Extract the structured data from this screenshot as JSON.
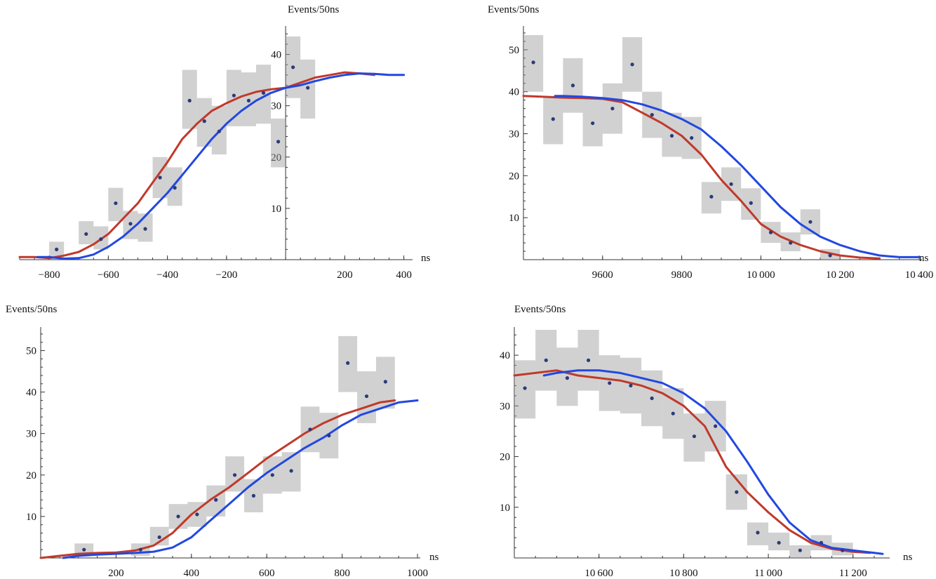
{
  "figure": {
    "description_none": ""
  },
  "chart_data": [
    {
      "type": "scatter",
      "title": "",
      "ylabel": "Events/50ns",
      "xlabel": "ns",
      "xlim": [
        -900,
        420
      ],
      "ylim": [
        0,
        45
      ],
      "yaxis_at_x": 0,
      "xticks": [
        -800,
        -600,
        -400,
        -200,
        200,
        400
      ],
      "xtick_labels": [
        "−800",
        "−600",
        "−400",
        "−200",
        "200",
        "400"
      ],
      "yticks": [
        10,
        20,
        30,
        40
      ],
      "points": [
        {
          "x": -775,
          "y": 2,
          "lo": 0,
          "hi": 3.5
        },
        {
          "x": -675,
          "y": 5,
          "lo": 3,
          "hi": 7.5
        },
        {
          "x": -625,
          "y": 4,
          "lo": 2,
          "hi": 6.5
        },
        {
          "x": -575,
          "y": 11,
          "lo": 7.5,
          "hi": 14
        },
        {
          "x": -525,
          "y": 7,
          "lo": 4,
          "hi": 9.5
        },
        {
          "x": -475,
          "y": 6,
          "lo": 3.5,
          "hi": 9
        },
        {
          "x": -425,
          "y": 16,
          "lo": 12,
          "hi": 20
        },
        {
          "x": -375,
          "y": 14,
          "lo": 10.5,
          "hi": 18
        },
        {
          "x": -325,
          "y": 31,
          "lo": 25.5,
          "hi": 37
        },
        {
          "x": -275,
          "y": 27,
          "lo": 22,
          "hi": 31.5
        },
        {
          "x": -225,
          "y": 25,
          "lo": 20.5,
          "hi": 30
        },
        {
          "x": -175,
          "y": 32,
          "lo": 26,
          "hi": 37
        },
        {
          "x": -125,
          "y": 31,
          "lo": 26,
          "hi": 36.5
        },
        {
          "x": -75,
          "y": 32.5,
          "lo": 26.5,
          "hi": 38
        },
        {
          "x": -25,
          "y": 23,
          "lo": 18,
          "hi": 27.5
        },
        {
          "x": 25,
          "y": 37.5,
          "lo": 31.5,
          "hi": 43.5
        },
        {
          "x": 75,
          "y": 33.5,
          "lo": 27.5,
          "hi": 39
        }
      ],
      "series": [
        {
          "name": "red",
          "color": "#c0392b",
          "x": [
            -900,
            -850,
            -800,
            -750,
            -700,
            -650,
            -600,
            -550,
            -500,
            -450,
            -400,
            -350,
            -300,
            -250,
            -200,
            -150,
            -100,
            -50,
            0,
            50,
            100,
            150,
            200,
            250,
            300
          ],
          "y": [
            0.5,
            0.5,
            0.3,
            0.8,
            1.5,
            3,
            5,
            8,
            11,
            15,
            19,
            23.5,
            26.5,
            29,
            30.5,
            31.8,
            32.7,
            33.2,
            33.5,
            34.5,
            35.5,
            36,
            36.5,
            36.3,
            36
          ]
        },
        {
          "name": "blue",
          "color": "#2248e0",
          "x": [
            -840,
            -800,
            -750,
            -700,
            -650,
            -600,
            -550,
            -500,
            -450,
            -400,
            -350,
            -300,
            -250,
            -200,
            -150,
            -100,
            -50,
            0,
            50,
            100,
            150,
            200,
            250,
            300,
            350,
            400
          ],
          "y": [
            0.5,
            0.5,
            0.2,
            0.3,
            1,
            2.5,
            4.5,
            7,
            10,
            13,
            16.5,
            20,
            23.5,
            26.5,
            29,
            31,
            32.5,
            33.5,
            34,
            34.8,
            35.5,
            36,
            36.3,
            36.2,
            36,
            36
          ]
        }
      ]
    },
    {
      "type": "scatter",
      "title": "",
      "ylabel": "Events/50ns",
      "xlabel": "ns",
      "xlim": [
        9400,
        10400
      ],
      "ylim": [
        0,
        55
      ],
      "yaxis_at_x": 9400,
      "xticks": [
        9600,
        9800,
        10000,
        10200,
        10400
      ],
      "xtick_labels": [
        "9600",
        "9800",
        "10 000",
        "10 200",
        "10 400"
      ],
      "yticks": [
        10,
        20,
        30,
        40,
        50
      ],
      "points": [
        {
          "x": 9425,
          "y": 47,
          "lo": 40,
          "hi": 53.5
        },
        {
          "x": 9475,
          "y": 33.5,
          "lo": 27.5,
          "hi": 39
        },
        {
          "x": 9525,
          "y": 41.5,
          "lo": 35,
          "hi": 48
        },
        {
          "x": 9575,
          "y": 32.5,
          "lo": 27,
          "hi": 38.5
        },
        {
          "x": 9625,
          "y": 36,
          "lo": 30,
          "hi": 42
        },
        {
          "x": 9675,
          "y": 46.5,
          "lo": 40,
          "hi": 53
        },
        {
          "x": 9725,
          "y": 34.5,
          "lo": 29,
          "hi": 40
        },
        {
          "x": 9775,
          "y": 29.5,
          "lo": 24.5,
          "hi": 35
        },
        {
          "x": 9825,
          "y": 29,
          "lo": 24,
          "hi": 34
        },
        {
          "x": 9875,
          "y": 15,
          "lo": 11,
          "hi": 18.5
        },
        {
          "x": 9925,
          "y": 18,
          "lo": 14,
          "hi": 22
        },
        {
          "x": 9975,
          "y": 13.5,
          "lo": 9.5,
          "hi": 17
        },
        {
          "x": 10025,
          "y": 6.5,
          "lo": 4,
          "hi": 9
        },
        {
          "x": 10075,
          "y": 4,
          "lo": 2,
          "hi": 6.5
        },
        {
          "x": 10125,
          "y": 9,
          "lo": 6,
          "hi": 12
        },
        {
          "x": 10175,
          "y": 1,
          "lo": 0,
          "hi": 2.5
        }
      ],
      "series": [
        {
          "name": "red",
          "color": "#c0392b",
          "x": [
            9400,
            9450,
            9500,
            9550,
            9600,
            9650,
            9700,
            9750,
            9800,
            9850,
            9900,
            9950,
            10000,
            10050,
            10100,
            10150,
            10200,
            10250,
            10300
          ],
          "y": [
            39,
            38.8,
            38.6,
            38.5,
            38.3,
            37.5,
            35,
            32.5,
            29.5,
            25,
            19,
            14,
            8.5,
            5.5,
            3.5,
            2,
            1,
            0.5,
            0.3
          ]
        },
        {
          "name": "blue",
          "color": "#2248e0",
          "x": [
            9480,
            9500,
            9550,
            9600,
            9650,
            9700,
            9750,
            9800,
            9850,
            9900,
            9950,
            10000,
            10050,
            10100,
            10150,
            10200,
            10250,
            10300,
            10350,
            10400
          ],
          "y": [
            39,
            39,
            38.8,
            38.5,
            38,
            37,
            35.5,
            33.5,
            31,
            27,
            22.5,
            17.5,
            12.5,
            8.5,
            5.5,
            3.5,
            2,
            1,
            0.6,
            0.6
          ]
        }
      ]
    },
    {
      "type": "scatter",
      "title": "",
      "ylabel": "Events/50ns",
      "xlabel": "ns",
      "xlim": [
        0,
        1000
      ],
      "ylim": [
        0,
        55
      ],
      "yaxis_at_x": 0,
      "xticks": [
        200,
        400,
        600,
        800,
        1000
      ],
      "xtick_labels": [
        "200",
        "400",
        "600",
        "800",
        "1000"
      ],
      "yticks": [
        10,
        20,
        30,
        40,
        50
      ],
      "points": [
        {
          "x": 115,
          "y": 2,
          "lo": 0.5,
          "hi": 3.5
        },
        {
          "x": 265,
          "y": 2,
          "lo": 0.5,
          "hi": 3.5
        },
        {
          "x": 315,
          "y": 5,
          "lo": 3,
          "hi": 7.5
        },
        {
          "x": 365,
          "y": 10,
          "lo": 7,
          "hi": 13
        },
        {
          "x": 415,
          "y": 10.5,
          "lo": 7.5,
          "hi": 13.5
        },
        {
          "x": 465,
          "y": 14,
          "lo": 10,
          "hi": 17.5
        },
        {
          "x": 515,
          "y": 20,
          "lo": 16,
          "hi": 24.5
        },
        {
          "x": 565,
          "y": 15,
          "lo": 11,
          "hi": 19
        },
        {
          "x": 615,
          "y": 20,
          "lo": 15.5,
          "hi": 24.5
        },
        {
          "x": 665,
          "y": 21,
          "lo": 16,
          "hi": 25.5
        },
        {
          "x": 715,
          "y": 31,
          "lo": 25.5,
          "hi": 36.5
        },
        {
          "x": 765,
          "y": 29.5,
          "lo": 24,
          "hi": 35
        },
        {
          "x": 815,
          "y": 47,
          "lo": 40,
          "hi": 53.5
        },
        {
          "x": 865,
          "y": 39,
          "lo": 32.5,
          "hi": 45
        },
        {
          "x": 915,
          "y": 42.5,
          "lo": 36,
          "hi": 48.5
        }
      ],
      "series": [
        {
          "name": "red",
          "color": "#c0392b",
          "x": [
            0,
            50,
            100,
            150,
            200,
            250,
            300,
            350,
            400,
            450,
            500,
            550,
            600,
            650,
            700,
            750,
            800,
            850,
            900,
            940
          ],
          "y": [
            0,
            0.5,
            1,
            1.2,
            1.3,
            1.8,
            3,
            6,
            10.5,
            14,
            17,
            20.5,
            24,
            27,
            30,
            32.5,
            34.5,
            36,
            37.5,
            38
          ]
        },
        {
          "name": "blue",
          "color": "#2248e0",
          "x": [
            60,
            100,
            150,
            200,
            250,
            300,
            350,
            400,
            450,
            500,
            550,
            600,
            650,
            700,
            750,
            800,
            850,
            900,
            950,
            1000
          ],
          "y": [
            0,
            0.5,
            0.8,
            1,
            1.2,
            1.5,
            2.5,
            5,
            9,
            13,
            17,
            20.5,
            23.5,
            26.5,
            29,
            32,
            34.5,
            36,
            37.5,
            38
          ]
        }
      ]
    },
    {
      "type": "scatter",
      "title": "",
      "ylabel": "Events/50ns",
      "xlabel": "ns",
      "xlim": [
        10400,
        11280
      ],
      "ylim": [
        0,
        45
      ],
      "yaxis_at_x": 10400,
      "xticks": [
        10600,
        10800,
        11000,
        11200
      ],
      "xtick_labels": [
        "10 600",
        "10 800",
        "11 000",
        "11 200"
      ],
      "yticks": [
        10,
        20,
        30,
        40
      ],
      "points": [
        {
          "x": 10425,
          "y": 33.5,
          "lo": 27.5,
          "hi": 39
        },
        {
          "x": 10475,
          "y": 39,
          "lo": 33,
          "hi": 45
        },
        {
          "x": 10525,
          "y": 35.5,
          "lo": 30,
          "hi": 41.5
        },
        {
          "x": 10575,
          "y": 39,
          "lo": 33,
          "hi": 45
        },
        {
          "x": 10625,
          "y": 34.5,
          "lo": 29,
          "hi": 40
        },
        {
          "x": 10675,
          "y": 34,
          "lo": 28.5,
          "hi": 39.5
        },
        {
          "x": 10725,
          "y": 31.5,
          "lo": 26,
          "hi": 37
        },
        {
          "x": 10775,
          "y": 28.5,
          "lo": 23.5,
          "hi": 33.5
        },
        {
          "x": 10825,
          "y": 24,
          "lo": 19,
          "hi": 28.5
        },
        {
          "x": 10875,
          "y": 26,
          "lo": 21,
          "hi": 31
        },
        {
          "x": 10925,
          "y": 13,
          "lo": 9.5,
          "hi": 16.5
        },
        {
          "x": 10975,
          "y": 5,
          "lo": 2.5,
          "hi": 7
        },
        {
          "x": 11025,
          "y": 3,
          "lo": 1.5,
          "hi": 5
        },
        {
          "x": 11075,
          "y": 1.5,
          "lo": 0,
          "hi": 2.5
        },
        {
          "x": 11125,
          "y": 3,
          "lo": 1.5,
          "hi": 4.5
        },
        {
          "x": 11175,
          "y": 1.5,
          "lo": 0.5,
          "hi": 3
        }
      ],
      "series": [
        {
          "name": "red",
          "color": "#c0392b",
          "x": [
            10400,
            10450,
            10500,
            10550,
            10600,
            10650,
            10700,
            10750,
            10800,
            10850,
            10900,
            10950,
            11000,
            11050,
            11100,
            11150,
            11200,
            11240
          ],
          "y": [
            36,
            36.5,
            37,
            36,
            35.5,
            35,
            34,
            32.5,
            30,
            26,
            18,
            13,
            9,
            5.5,
            3,
            1.8,
            1.2,
            1
          ]
        },
        {
          "name": "blue",
          "color": "#2248e0",
          "x": [
            10470,
            10500,
            10550,
            10600,
            10650,
            10700,
            10750,
            10800,
            10850,
            10900,
            10950,
            11000,
            11050,
            11100,
            11150,
            11200,
            11250,
            11270
          ],
          "y": [
            36,
            36.5,
            37,
            37,
            36.5,
            35.5,
            34.5,
            32.5,
            29.5,
            25,
            19,
            12.5,
            7,
            3.5,
            2,
            1.5,
            1,
            0.8
          ]
        }
      ]
    }
  ]
}
